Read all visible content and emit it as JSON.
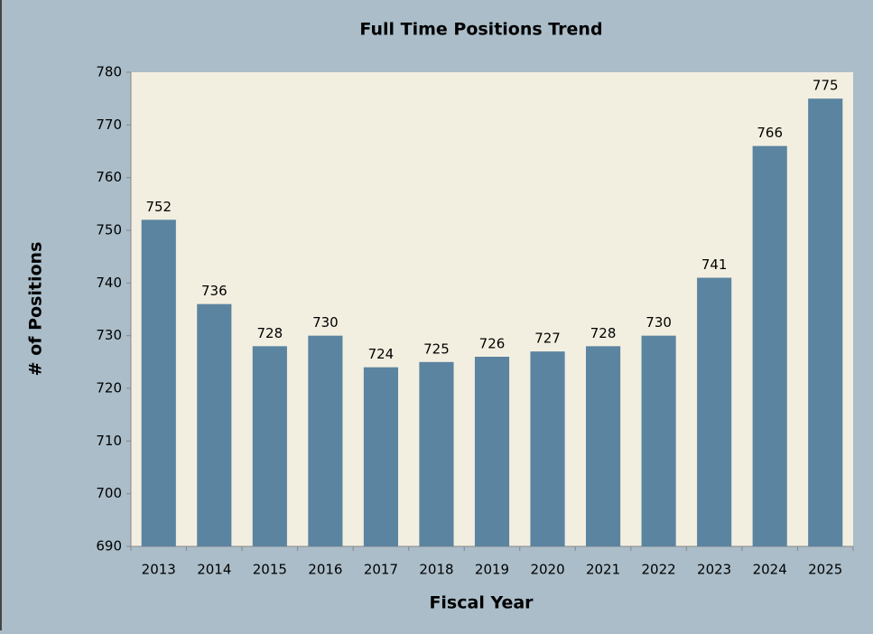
{
  "chart_data": {
    "type": "bar",
    "title": "Full Time Positions Trend",
    "x_label": "Fiscal Year",
    "y_label": "# of Positions",
    "categories": [
      "2013",
      "2014",
      "2015",
      "2016",
      "2017",
      "2018",
      "2019",
      "2020",
      "2021",
      "2022",
      "2023",
      "2024",
      "2025"
    ],
    "values": [
      752,
      736,
      728,
      730,
      724,
      725,
      726,
      727,
      728,
      730,
      741,
      766,
      775
    ],
    "color": "#5b84a0",
    "ylim": [
      690,
      780
    ],
    "yticks": [
      690,
      700,
      710,
      720,
      730,
      740,
      750,
      760,
      770,
      780
    ],
    "grid": false
  }
}
